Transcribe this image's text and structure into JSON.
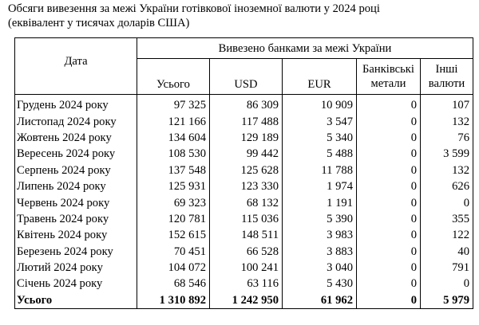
{
  "title": {
    "line1": "Обсяги вивезення за межі України готівкової іноземної валюти у 2024 році",
    "line2": "(еквівалент у тисячах доларів США)"
  },
  "table": {
    "date_header": "Дата",
    "group_header": "Вивезено банками за межі України",
    "columns": {
      "total": "Усього",
      "usd": "USD",
      "eur": "EUR",
      "metals": "Банківські метали",
      "other": "Інші валюти"
    },
    "rows": [
      {
        "date": "Грудень 2024 року",
        "total": "97 325",
        "usd": "86 309",
        "eur": "10 909",
        "metals": "0",
        "other": "107"
      },
      {
        "date": "Листопад 2024 року",
        "total": "121 166",
        "usd": "117 488",
        "eur": "3 547",
        "metals": "0",
        "other": "132"
      },
      {
        "date": "Жовтень 2024 року",
        "total": "134 604",
        "usd": "129 189",
        "eur": "5 340",
        "metals": "0",
        "other": "76"
      },
      {
        "date": "Вересень 2024 року",
        "total": "108 530",
        "usd": "99 442",
        "eur": "5 488",
        "metals": "0",
        "other": "3 599"
      },
      {
        "date": "Серпень 2024 року",
        "total": "137 548",
        "usd": "125 628",
        "eur": "11 788",
        "metals": "0",
        "other": "132"
      },
      {
        "date": "Липень 2024 року",
        "total": "125 931",
        "usd": "123 330",
        "eur": "1 974",
        "metals": "0",
        "other": "626"
      },
      {
        "date": "Червень 2024 року",
        "total": "69 323",
        "usd": "68 132",
        "eur": "1 191",
        "metals": "0",
        "other": "0"
      },
      {
        "date": "Травень 2024 року",
        "total": "120 781",
        "usd": "115 036",
        "eur": "5 390",
        "metals": "0",
        "other": "355"
      },
      {
        "date": "Квітень 2024 року",
        "total": "152 615",
        "usd": "148 511",
        "eur": "3 983",
        "metals": "0",
        "other": "122"
      },
      {
        "date": "Березень 2024 року",
        "total": "70 451",
        "usd": "66 528",
        "eur": "3 883",
        "metals": "0",
        "other": "40"
      },
      {
        "date": "Лютий 2024 року",
        "total": "104 072",
        "usd": "100 241",
        "eur": "3 040",
        "metals": "0",
        "other": "791"
      },
      {
        "date": "Січень 2024 року",
        "total": "68 546",
        "usd": "63 116",
        "eur": "5 430",
        "metals": "0",
        "other": "0"
      }
    ],
    "totals": {
      "date": "Усього",
      "total": "1 310 892",
      "usd": "1 242 950",
      "eur": "61 962",
      "metals": "0",
      "other": "5 979"
    }
  }
}
